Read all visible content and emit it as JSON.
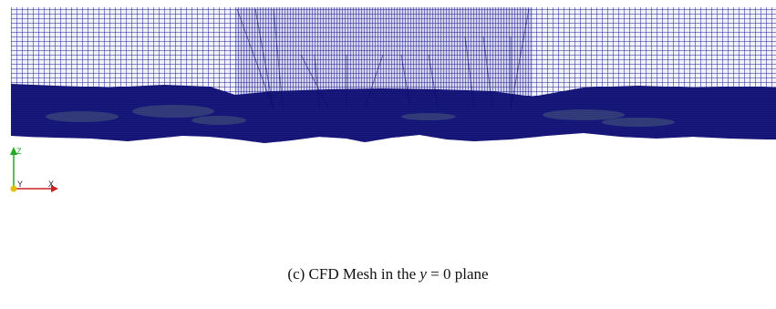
{
  "figure": {
    "caption": {
      "label": "(c)",
      "text_before": "CFD Mesh in the",
      "math_var": "y",
      "math_rest": "= 0",
      "text_after": "plane"
    },
    "mesh": {
      "line_color": "#1c1c8c",
      "fill_color": "#0d0d78",
      "dense_color": "#000066",
      "surface_tint": "#4b5a7a"
    },
    "axes": {
      "z_label": "Z",
      "y_label": "Y",
      "x_label": "X",
      "z_color": "#22aa22",
      "y_color": "#e0c000",
      "x_color": "#cc2222"
    }
  }
}
